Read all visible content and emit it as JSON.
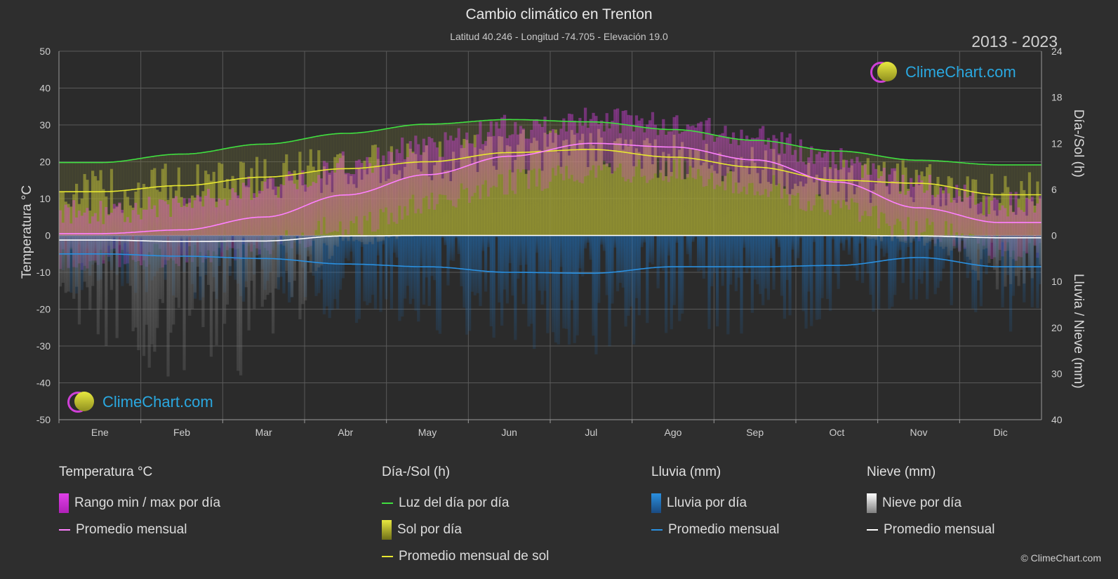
{
  "header": {
    "title": "Cambio climático en Trenton",
    "subtitle": "Latitud 40.246 - Longitud -74.705 - Elevación 19.0",
    "period": "2013 - 2023"
  },
  "logo_text": "ClimeChart.com",
  "copyright": "© ClimeChart.com",
  "colors": {
    "background": "#2e2e2e",
    "temp_range": "#e040e8",
    "temp_avg": "#ff80ff",
    "daylight": "#40e040",
    "sunshine": "#c8c840",
    "sunshine_avg": "#e8e830",
    "rain": "#1e78c8",
    "rain_avg": "#2a90e0",
    "snow": "#d0d0d0",
    "snow_avg": "#ffffff"
  },
  "chart_data": {
    "type": "line",
    "categories": [
      "Ene",
      "Feb",
      "Mar",
      "Abr",
      "May",
      "Jun",
      "Jul",
      "Ago",
      "Sep",
      "Oct",
      "Nov",
      "Dic"
    ],
    "axes": {
      "left": {
        "label": "Temperatura °C",
        "range": [
          -50,
          50
        ],
        "ticks": [
          50,
          40,
          30,
          20,
          10,
          0,
          -10,
          -20,
          -30,
          -40,
          -50
        ]
      },
      "right_top": {
        "label": "Día-/Sol (h)",
        "range": [
          0,
          24
        ],
        "ticks": [
          24,
          18,
          12,
          6,
          0
        ]
      },
      "right_bottom": {
        "label": "Lluvia / Nieve (mm)",
        "range": [
          0,
          40
        ],
        "ticks": [
          10,
          20,
          30,
          40
        ]
      }
    },
    "grid": true,
    "series": [
      {
        "name": "Luz del día por día",
        "unit": "h",
        "values": [
          9.5,
          10.6,
          11.9,
          13.3,
          14.5,
          15.1,
          14.8,
          13.8,
          12.4,
          11.0,
          9.8,
          9.2
        ]
      },
      {
        "name": "Promedio mensual de sol",
        "unit": "h",
        "values": [
          5.7,
          6.5,
          7.6,
          8.7,
          9.6,
          10.8,
          11.2,
          10.2,
          8.9,
          7.2,
          6.8,
          5.3
        ]
      },
      {
        "name": "Promedio mensual",
        "kind": "temperature",
        "unit": "°C",
        "values": [
          0.5,
          1.5,
          5.0,
          11.0,
          16.5,
          21.5,
          25.0,
          24.0,
          20.5,
          14.5,
          7.5,
          3.5
        ]
      },
      {
        "name": "Rango min / max por día",
        "kind": "temperature-range",
        "unit": "°C",
        "max": [
          5,
          7,
          12,
          18,
          23,
          28,
          30,
          29,
          25,
          19,
          12,
          7
        ],
        "min": [
          -5,
          -4,
          -1,
          4,
          10,
          16,
          19,
          19,
          15,
          9,
          3,
          -2
        ]
      },
      {
        "name": "Promedio mensual",
        "kind": "rain",
        "unit": "mm",
        "values": [
          4.0,
          4.5,
          5.0,
          6.2,
          6.8,
          8.0,
          8.2,
          6.8,
          6.8,
          6.5,
          4.8,
          6.8
        ]
      },
      {
        "name": "Promedio mensual",
        "kind": "snow",
        "unit": "mm",
        "values": [
          1.0,
          1.3,
          1.2,
          0.1,
          0,
          0,
          0,
          0,
          0,
          0,
          0.1,
          0.5
        ]
      }
    ]
  },
  "legend": {
    "temperature": {
      "title": "Temperatura °C",
      "items": [
        "Rango min / max por día",
        "Promedio mensual"
      ]
    },
    "sun": {
      "title": "Día-/Sol (h)",
      "items": [
        "Luz del día por día",
        "Sol por día",
        "Promedio mensual de sol"
      ]
    },
    "rain": {
      "title": "Lluvia (mm)",
      "items": [
        "Lluvia por día",
        "Promedio mensual"
      ]
    },
    "snow": {
      "title": "Nieve (mm)",
      "items": [
        "Nieve por día",
        "Promedio mensual"
      ]
    }
  }
}
